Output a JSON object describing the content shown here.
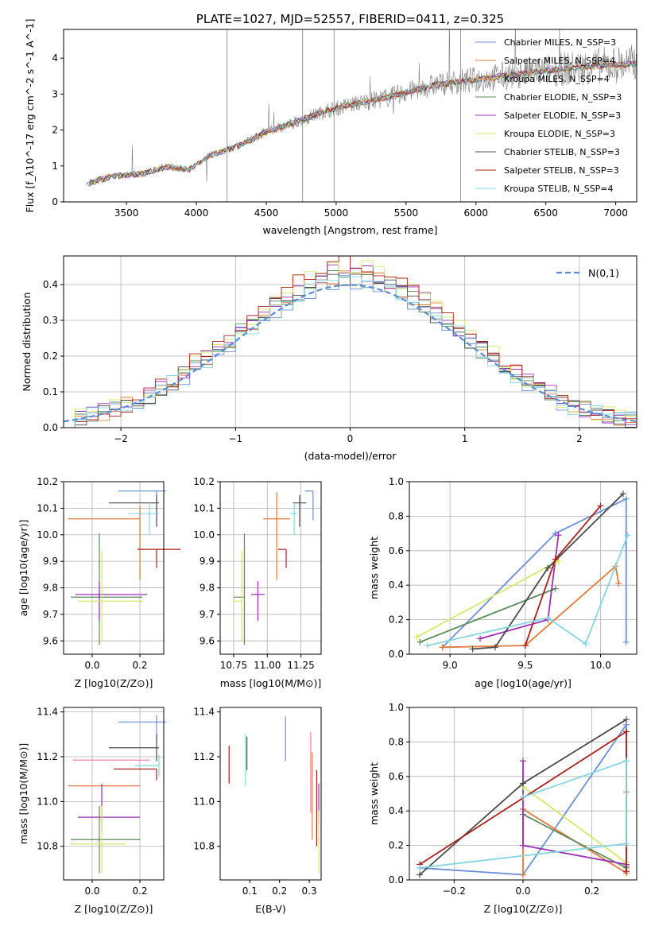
{
  "chart_data": [
    {
      "type": "line",
      "title": "PLATE=1027, MJD=52557, FIBERID=0411, z=0.325",
      "xlabel": "wavelength [Angstrom, rest frame]",
      "ylabel": "Flux [f_λ10^-17 erg cm^-2 s^-1 A^-1]",
      "xlim": [
        3050,
        7150
      ],
      "ylim": [
        0,
        4.8
      ],
      "xticks": [
        3500,
        4000,
        4500,
        5000,
        5500,
        6000,
        6500,
        7000
      ],
      "yticks": [
        0,
        1,
        2,
        3,
        4
      ],
      "legend_position": "top-right",
      "grid": false,
      "observed_spectrum": {
        "color": "#808080",
        "x_range": [
          3210,
          7150
        ],
        "anchors": [
          [
            3210,
            0.5
          ],
          [
            3400,
            0.72
          ],
          [
            3600,
            0.78
          ],
          [
            3800,
            0.98
          ],
          [
            3950,
            0.9
          ],
          [
            4100,
            1.3
          ],
          [
            4300,
            1.55
          ],
          [
            4500,
            1.95
          ],
          [
            4700,
            2.2
          ],
          [
            4900,
            2.5
          ],
          [
            5100,
            2.7
          ],
          [
            5300,
            2.85
          ],
          [
            5500,
            3.05
          ],
          [
            5700,
            3.25
          ],
          [
            5900,
            3.35
          ],
          [
            6100,
            3.45
          ],
          [
            6300,
            3.55
          ],
          [
            6500,
            3.65
          ],
          [
            6700,
            3.72
          ],
          [
            6900,
            3.8
          ],
          [
            7150,
            3.85
          ]
        ]
      },
      "series": [
        {
          "name": "Chabrier MILES, N_SSP=3",
          "color": "#6a8fd4"
        },
        {
          "name": "Salpeter MILES, N_SSP=4",
          "color": "#e07b39"
        },
        {
          "name": "Kroupa MILES, N_SSP=4",
          "color": "#f0a860"
        },
        {
          "name": "Chabrier ELODIE, N_SSP=3",
          "color": "#5c8a5c"
        },
        {
          "name": "Salpeter ELODIE, N_SSP=3",
          "color": "#9b30b5"
        },
        {
          "name": "Kroupa ELODIE, N_SSP=3",
          "color": "#d4e86a"
        },
        {
          "name": "Chabrier STELIB, N_SSP=3",
          "color": "#4a4a4a"
        },
        {
          "name": "Salpeter STELIB, N_SSP=3",
          "color": "#aa1f1f"
        },
        {
          "name": "Kroupa STELIB, N_SSP=4",
          "color": "#86d6e0"
        }
      ]
    },
    {
      "type": "line",
      "xlabel": "(data-model)/error",
      "ylabel": "Normed distribution",
      "xlim": [
        -2.5,
        2.5
      ],
      "ylim": [
        0,
        0.48
      ],
      "xticks": [
        -2,
        -1,
        0,
        1,
        2
      ],
      "yticks": [
        0.0,
        0.1,
        0.2,
        0.3,
        0.4
      ],
      "grid": true,
      "legend_position": "top-right",
      "reference": {
        "name": "N(0,1)",
        "color": "#5b8bd6",
        "style": "dashed",
        "mu": 0,
        "sigma": 1
      },
      "histograms": [
        {
          "color": "#6a8fd4",
          "peak": 0.41
        },
        {
          "color": "#e07b39",
          "peak": 0.43
        },
        {
          "color": "#5c8a5c",
          "peak": 0.42
        },
        {
          "color": "#9b30b5",
          "peak": 0.44
        },
        {
          "color": "#d4e86a",
          "peak": 0.45
        },
        {
          "color": "#4a4a4a",
          "peak": 0.42
        },
        {
          "color": "#aa1f1f",
          "peak": 0.46
        },
        {
          "color": "#86d6e0",
          "peak": 0.41
        }
      ]
    },
    {
      "type": "scatter",
      "xlabel": "Z [log10(Z/Z⊙)]",
      "ylabel": "age [log10(age/yr)]",
      "xlim": [
        -0.12,
        0.3
      ],
      "ylim": [
        9.55,
        10.2
      ],
      "xticks": [
        0.0,
        0.2
      ],
      "yticks": [
        9.6,
        9.7,
        9.8,
        9.9,
        10.0,
        10.1,
        10.2
      ],
      "grid": true,
      "points": [
        {
          "color": "#6a8fd4",
          "x": 0.27,
          "xerr": [
            0.16,
            0.04
          ],
          "y": 10.165,
          "yerr": [
            0.11,
            0.0
          ]
        },
        {
          "color": "#4a4a4a",
          "x": 0.27,
          "xerr": [
            0.2,
            0.01
          ],
          "y": 10.12,
          "yerr": [
            0.09,
            0.03
          ]
        },
        {
          "color": "#86d6e0",
          "x": 0.24,
          "xerr": [
            0.09,
            0.04
          ],
          "y": 10.08,
          "yerr": [
            0.08,
            0.04
          ]
        },
        {
          "color": "#e07b39",
          "x": 0.2,
          "xerr": [
            0.3,
            0.0
          ],
          "y": 10.06,
          "yerr": [
            0.23,
            0.05
          ]
        },
        {
          "color": "#aa1f1f",
          "x": 0.27,
          "xerr": [
            0.08,
            0.1
          ],
          "y": 9.945,
          "yerr": [
            0.07,
            0.0
          ]
        },
        {
          "color": "#5c8a5c",
          "x": 0.03,
          "xerr": [
            0.12,
            0.18
          ],
          "y": 9.765,
          "yerr": [
            0.18,
            0.24
          ]
        },
        {
          "color": "#9b30b5",
          "x": 0.03,
          "xerr": [
            0.1,
            0.2
          ],
          "y": 9.775,
          "yerr": [
            0.1,
            0.05
          ]
        },
        {
          "color": "#d4e86a",
          "x": 0.04,
          "xerr": [
            0.1,
            0.17
          ],
          "y": 9.75,
          "yerr": [
            0.15,
            0.19
          ]
        }
      ]
    },
    {
      "type": "scatter",
      "xlabel": "mass [log10(M/M⊙)]",
      "ylabel": "",
      "xlim": [
        10.65,
        11.4
      ],
      "ylim": [
        9.55,
        10.2
      ],
      "xticks": [
        10.75,
        11.0,
        11.25
      ],
      "yticks": [
        9.6,
        9.7,
        9.8,
        9.9,
        10.0,
        10.1,
        10.2
      ],
      "grid": true,
      "points": [
        {
          "color": "#6a8fd4",
          "x": 11.34,
          "xerr": [
            0.06,
            0.0
          ],
          "y": 10.165,
          "yerr": [
            0.11,
            0.0
          ]
        },
        {
          "color": "#4a4a4a",
          "x": 11.24,
          "xerr": [
            0.05,
            0.05
          ],
          "y": 10.12,
          "yerr": [
            0.09,
            0.03
          ]
        },
        {
          "color": "#86d6e0",
          "x": 11.2,
          "xerr": [
            0.03,
            0.02
          ],
          "y": 10.08,
          "yerr": [
            0.08,
            0.04
          ]
        },
        {
          "color": "#e07b39",
          "x": 11.07,
          "xerr": [
            0.1,
            0.1
          ],
          "y": 10.06,
          "yerr": [
            0.23,
            0.1
          ]
        },
        {
          "color": "#aa1f1f",
          "x": 11.14,
          "xerr": [
            0.06,
            0.0
          ],
          "y": 9.945,
          "yerr": [
            0.07,
            0.0
          ]
        },
        {
          "color": "#5c8a5c",
          "x": 10.83,
          "xerr": [
            0.08,
            0.0
          ],
          "y": 9.765,
          "yerr": [
            0.18,
            0.24
          ]
        },
        {
          "color": "#9b30b5",
          "x": 10.93,
          "xerr": [
            0.05,
            0.05
          ],
          "y": 9.775,
          "yerr": [
            0.1,
            0.05
          ]
        },
        {
          "color": "#d4e86a",
          "x": 10.81,
          "xerr": [
            0.06,
            0.0
          ],
          "y": 9.75,
          "yerr": [
            0.15,
            0.19
          ]
        }
      ]
    },
    {
      "type": "line",
      "xlabel": "age [log10(age/yr)]",
      "ylabel": "mass weight",
      "xlim": [
        8.73,
        10.24
      ],
      "ylim": [
        0,
        1
      ],
      "xticks": [
        9.0,
        9.5,
        10.0
      ],
      "yticks": [
        0.0,
        0.2,
        0.4,
        0.6,
        0.8,
        1.0
      ],
      "grid": true,
      "series": [
        {
          "color": "#6a8fd4",
          "x": [
            8.95,
            9.7,
            10.17,
            10.17
          ],
          "y": [
            0.04,
            0.7,
            0.9,
            0.07
          ]
        },
        {
          "color": "#e07b39",
          "x": [
            8.95,
            9.5,
            10.1,
            10.12
          ],
          "y": [
            0.04,
            0.05,
            0.51,
            0.41
          ]
        },
        {
          "color": "#5c8a5c",
          "x": [
            8.8,
            9.7
          ],
          "y": [
            0.07,
            0.38
          ]
        },
        {
          "color": "#9b30b5",
          "x": [
            9.2,
            9.65,
            9.72
          ],
          "y": [
            0.09,
            0.2,
            0.69
          ]
        },
        {
          "color": "#d4e86a",
          "x": [
            8.78,
            9.72
          ],
          "y": [
            0.1,
            0.54
          ]
        },
        {
          "color": "#4a4a4a",
          "x": [
            9.15,
            9.3,
            9.65,
            10.15
          ],
          "y": [
            0.03,
            0.04,
            0.5,
            0.93
          ]
        },
        {
          "color": "#aa1f1f",
          "x": [
            9.5,
            9.7,
            10.0
          ],
          "y": [
            0.05,
            0.55,
            0.86
          ]
        },
        {
          "color": "#86d6e0",
          "x": [
            8.85,
            9.65,
            9.9,
            10.18
          ],
          "y": [
            0.05,
            0.21,
            0.06,
            0.69
          ]
        }
      ]
    },
    {
      "type": "scatter",
      "xlabel": "Z [log10(Z/Z⊙)]",
      "ylabel": "mass [log10(M/M⊙)]",
      "xlim": [
        -0.12,
        0.3
      ],
      "ylim": [
        10.65,
        11.42
      ],
      "xticks": [
        0.0,
        0.2
      ],
      "yticks": [
        10.8,
        11.0,
        11.2,
        11.4
      ],
      "grid": true,
      "points": [
        {
          "color": "#6a8fd4",
          "x": 0.27,
          "xerr": [
            0.16,
            0.04
          ],
          "y": 11.355,
          "yerr": [
            0.08,
            0.03
          ]
        },
        {
          "color": "#4a4a4a",
          "x": 0.27,
          "xerr": [
            0.2,
            0.01
          ],
          "y": 11.24,
          "yerr": [
            0.06,
            0.06
          ]
        },
        {
          "color": "#ef7ea8",
          "x": 0.24,
          "xerr": [
            0.32,
            0.0
          ],
          "y": 11.185,
          "yerr": [
            0.0,
            0.0
          ]
        },
        {
          "color": "#86d6e0",
          "x": 0.28,
          "xerr": [
            0.1,
            0.0
          ],
          "y": 11.16,
          "yerr": [
            0.05,
            0.05
          ]
        },
        {
          "color": "#aa1f1f",
          "x": 0.27,
          "xerr": [
            0.18,
            0.0
          ],
          "y": 11.145,
          "yerr": [
            0.05,
            0.0
          ]
        },
        {
          "color": "#e07b39",
          "x": 0.2,
          "xerr": [
            0.3,
            0.0
          ],
          "y": 11.07,
          "yerr": [
            0.0,
            0.0
          ]
        },
        {
          "color": "#9b30b5",
          "x": 0.04,
          "xerr": [
            0.1,
            0.16
          ],
          "y": 10.93,
          "yerr": [
            0.06,
            0.15
          ]
        },
        {
          "color": "#5c8a5c",
          "x": 0.03,
          "xerr": [
            0.12,
            0.17
          ],
          "y": 10.83,
          "yerr": [
            0.15,
            0.15
          ]
        },
        {
          "color": "#d4e86a",
          "x": 0.04,
          "xerr": [
            0.13,
            0.1
          ],
          "y": 10.81,
          "yerr": [
            0.13,
            0.17
          ]
        }
      ]
    },
    {
      "type": "scatter",
      "xlabel": "E(B-V)",
      "ylabel": "",
      "xlim": [
        0.0,
        0.34
      ],
      "ylim": [
        10.65,
        11.42
      ],
      "xticks": [
        0.1,
        0.2,
        0.3
      ],
      "yticks": [
        10.8,
        11.0,
        11.2,
        11.4
      ],
      "grid": false,
      "segments": [
        {
          "color": "#aa1f1f",
          "x": 0.03,
          "y": [
            11.08,
            11.25
          ]
        },
        {
          "color": "#4a4a4a",
          "x": 0.09,
          "y": [
            11.14,
            11.29
          ]
        },
        {
          "color": "#86d6e0",
          "x": 0.085,
          "y": [
            11.07,
            11.3
          ]
        },
        {
          "color": "#6a8fd4",
          "x": 0.22,
          "y": [
            11.18,
            11.38
          ]
        },
        {
          "color": "#ef7ea8",
          "x": 0.305,
          "y": [
            10.95,
            11.31
          ]
        },
        {
          "color": "#e07b39",
          "x": 0.31,
          "y": [
            10.83,
            11.22
          ]
        },
        {
          "color": "#aa1f1f",
          "x": 0.325,
          "y": [
            10.8,
            11.14
          ]
        },
        {
          "color": "#9b30b5",
          "x": 0.332,
          "y": [
            10.9,
            11.08
          ]
        },
        {
          "color": "#d4e86a",
          "x": 0.332,
          "y": [
            10.68,
            10.96
          ]
        }
      ]
    },
    {
      "type": "line",
      "xlabel": "Z [log10(Z/Z⊙)]",
      "ylabel": "mass weight",
      "xlim": [
        -0.33,
        0.33
      ],
      "ylim": [
        0,
        1
      ],
      "xticks": [
        -0.2,
        0.0,
        0.2
      ],
      "yticks": [
        0.0,
        0.2,
        0.4,
        0.6,
        0.8,
        1.0
      ],
      "grid": true,
      "series": [
        {
          "color": "#6a8fd4",
          "x": [
            -0.3,
            0.0,
            0.3,
            0.3
          ],
          "y": [
            0.07,
            0.03,
            0.9,
            0.08
          ]
        },
        {
          "color": "#e07b39",
          "x": [
            0.0,
            0.0,
            0.3,
            0.3
          ],
          "y": [
            0.03,
            0.41,
            0.04,
            0.51
          ]
        },
        {
          "color": "#5c8a5c",
          "x": [
            0.0,
            0.3
          ],
          "y": [
            0.38,
            0.07
          ]
        },
        {
          "color": "#9b30b5",
          "x": [
            0.0,
            0.0,
            0.3
          ],
          "y": [
            0.69,
            0.2,
            0.09
          ]
        },
        {
          "color": "#d4e86a",
          "x": [
            0.0,
            0.3
          ],
          "y": [
            0.54,
            0.1
          ]
        },
        {
          "color": "#4a4a4a",
          "x": [
            -0.3,
            0.0,
            0.3
          ],
          "y": [
            0.03,
            0.56,
            0.93
          ]
        },
        {
          "color": "#aa1f1f",
          "x": [
            -0.3,
            0.3,
            0.3
          ],
          "y": [
            0.09,
            0.86,
            0.05
          ]
        },
        {
          "color": "#86d6e0",
          "x": [
            -0.3,
            0.3,
            0.3,
            0.0
          ],
          "y": [
            0.07,
            0.21,
            0.69,
            0.48
          ]
        }
      ]
    }
  ]
}
